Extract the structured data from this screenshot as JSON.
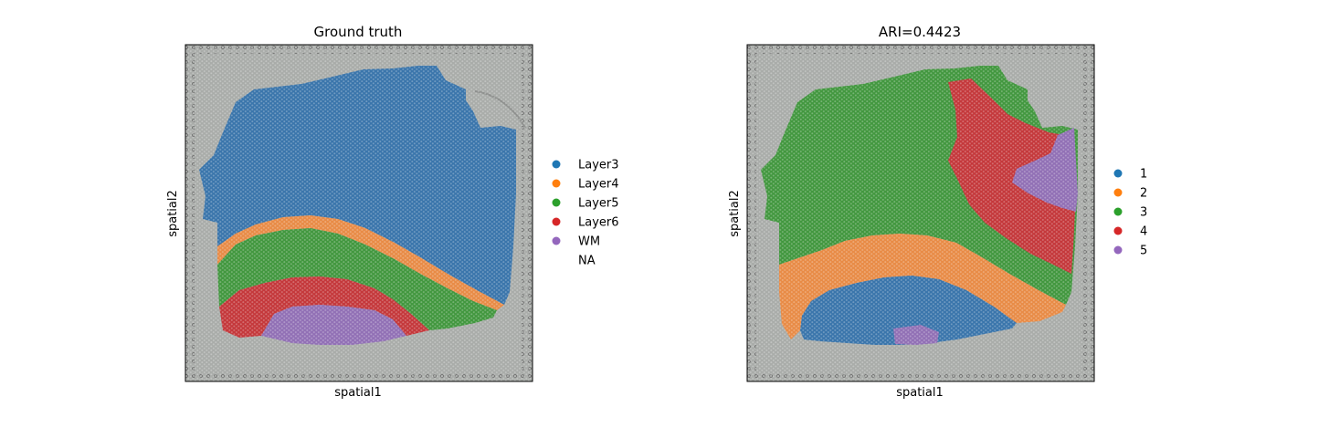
{
  "chart_data": [
    {
      "type": "scatter",
      "title": "Ground truth",
      "xlabel": "spatial1",
      "ylabel": "spatial2",
      "grid": false,
      "ticks_visible": false,
      "background": "histology tissue image",
      "legend_placement": "right outside",
      "legend": [
        {
          "label": "Layer3",
          "color": "#1f77b4"
        },
        {
          "label": "Layer4",
          "color": "#ff7f0e"
        },
        {
          "label": "Layer5",
          "color": "#2ca02c"
        },
        {
          "label": "Layer6",
          "color": "#d62728"
        },
        {
          "label": "WM",
          "color": "#9467bd"
        },
        {
          "label": "NA",
          "color": ""
        }
      ]
    },
    {
      "type": "scatter",
      "title": "ARI=0.4423",
      "xlabel": "spatial1",
      "ylabel": "spatial2",
      "grid": false,
      "ticks_visible": false,
      "background": "histology tissue image",
      "legend_placement": "right outside",
      "legend": [
        {
          "label": "1",
          "color": "#1f77b4"
        },
        {
          "label": "2",
          "color": "#ff7f0e"
        },
        {
          "label": "3",
          "color": "#2ca02c"
        },
        {
          "label": "4",
          "color": "#d62728"
        },
        {
          "label": "5",
          "color": "#9467bd"
        }
      ]
    }
  ]
}
